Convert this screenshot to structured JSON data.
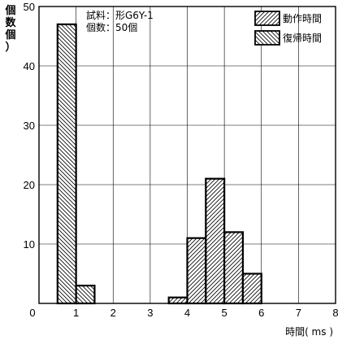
{
  "chart_data": {
    "type": "bar",
    "title": "",
    "ylabel": [
      "個",
      "数",
      "個",
      "）"
    ],
    "xlabel": "時間( ms )",
    "xlim": [
      0,
      8
    ],
    "ylim": [
      0,
      50
    ],
    "xticks": [
      0,
      1,
      2,
      3,
      4,
      5,
      6,
      7,
      8
    ],
    "yticks": [
      10,
      20,
      30,
      40,
      50
    ],
    "grid": true,
    "annotation_lines": [
      "試料：形G6Y-1",
      "個数：50個"
    ],
    "legend_position": "top-right",
    "series": [
      {
        "name": "動作時間",
        "pattern": "hatch-forward",
        "bins": [
          {
            "x0": 3.5,
            "x1": 4.0,
            "value": 1
          },
          {
            "x0": 4.0,
            "x1": 4.5,
            "value": 11
          },
          {
            "x0": 4.5,
            "x1": 5.0,
            "value": 21
          },
          {
            "x0": 5.0,
            "x1": 5.5,
            "value": 12
          },
          {
            "x0": 5.5,
            "x1": 6.0,
            "value": 5
          }
        ]
      },
      {
        "name": "復帰時間",
        "pattern": "hatch-backward",
        "bins": [
          {
            "x0": 0.5,
            "x1": 1.0,
            "value": 47
          },
          {
            "x0": 1.0,
            "x1": 1.5,
            "value": 3
          }
        ]
      }
    ]
  }
}
